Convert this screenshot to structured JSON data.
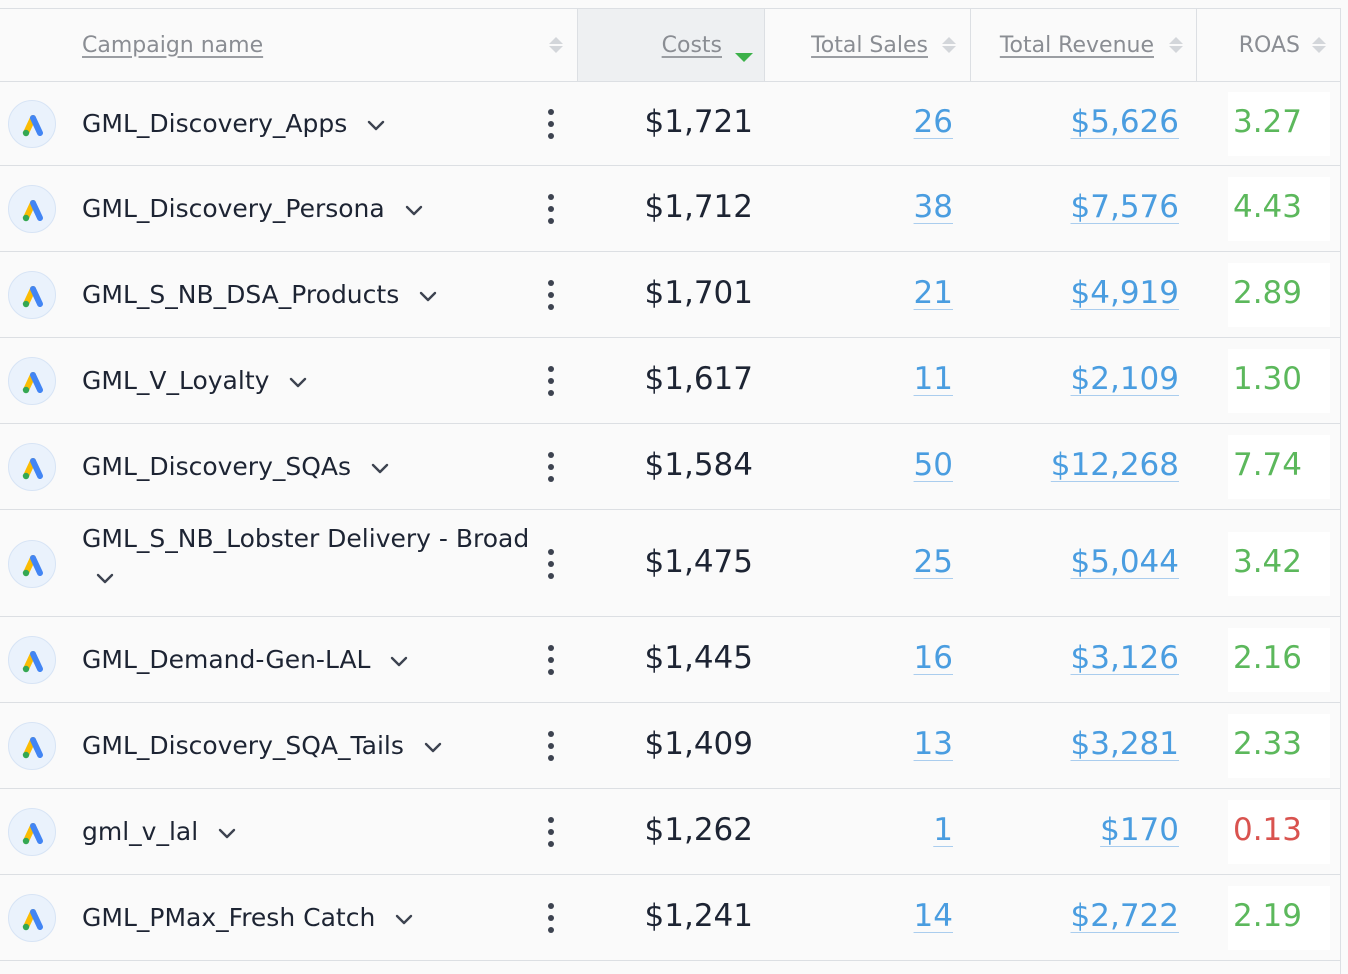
{
  "columns": {
    "campaign_name": "Campaign name",
    "costs": "Costs",
    "total_sales": "Total Sales",
    "total_revenue": "Total Revenue",
    "roas": "ROAS"
  },
  "sort": {
    "column": "Costs",
    "direction": "descending"
  },
  "colors": {
    "link": "#4a9de0",
    "roas_good": "#5cb85c",
    "roas_bad": "#d9534f",
    "sort_active": "#3cb14a",
    "google_ads_blue": "#4285f4",
    "google_ads_yellow": "#fbbc04",
    "google_ads_green": "#34a853"
  },
  "icons": {
    "row_logo": "google-ads-icon",
    "expand": "chevron-down-icon",
    "menu": "more-vertical-icon"
  },
  "rows": [
    {
      "name": "GML_Discovery_Apps",
      "cost": "$1,721",
      "sales": "26",
      "revenue": "$5,626",
      "roas": "3.27",
      "roas_status": "good"
    },
    {
      "name": "GML_Discovery_Persona",
      "cost": "$1,712",
      "sales": "38",
      "revenue": "$7,576",
      "roas": "4.43",
      "roas_status": "good"
    },
    {
      "name": "GML_S_NB_DSA_Products",
      "cost": "$1,701",
      "sales": "21",
      "revenue": "$4,919",
      "roas": "2.89",
      "roas_status": "good"
    },
    {
      "name": "GML_V_Loyalty",
      "cost": "$1,617",
      "sales": "11",
      "revenue": "$2,109",
      "roas": "1.30",
      "roas_status": "good"
    },
    {
      "name": "GML_Discovery_SQAs",
      "cost": "$1,584",
      "sales": "50",
      "revenue": "$12,268",
      "roas": "7.74",
      "roas_status": "good"
    },
    {
      "name": "GML_S_NB_Lobster Delivery - Broad",
      "cost": "$1,475",
      "sales": "25",
      "revenue": "$5,044",
      "roas": "3.42",
      "roas_status": "good"
    },
    {
      "name": "GML_Demand-Gen-LAL",
      "cost": "$1,445",
      "sales": "16",
      "revenue": "$3,126",
      "roas": "2.16",
      "roas_status": "good"
    },
    {
      "name": "GML_Discovery_SQA_Tails",
      "cost": "$1,409",
      "sales": "13",
      "revenue": "$3,281",
      "roas": "2.33",
      "roas_status": "good"
    },
    {
      "name": "gml_v_lal",
      "cost": "$1,262",
      "sales": "1",
      "revenue": "$170",
      "roas": "0.13",
      "roas_status": "bad"
    },
    {
      "name": "GML_PMax_Fresh Catch",
      "cost": "$1,241",
      "sales": "14",
      "revenue": "$2,722",
      "roas": "2.19",
      "roas_status": "good"
    }
  ]
}
